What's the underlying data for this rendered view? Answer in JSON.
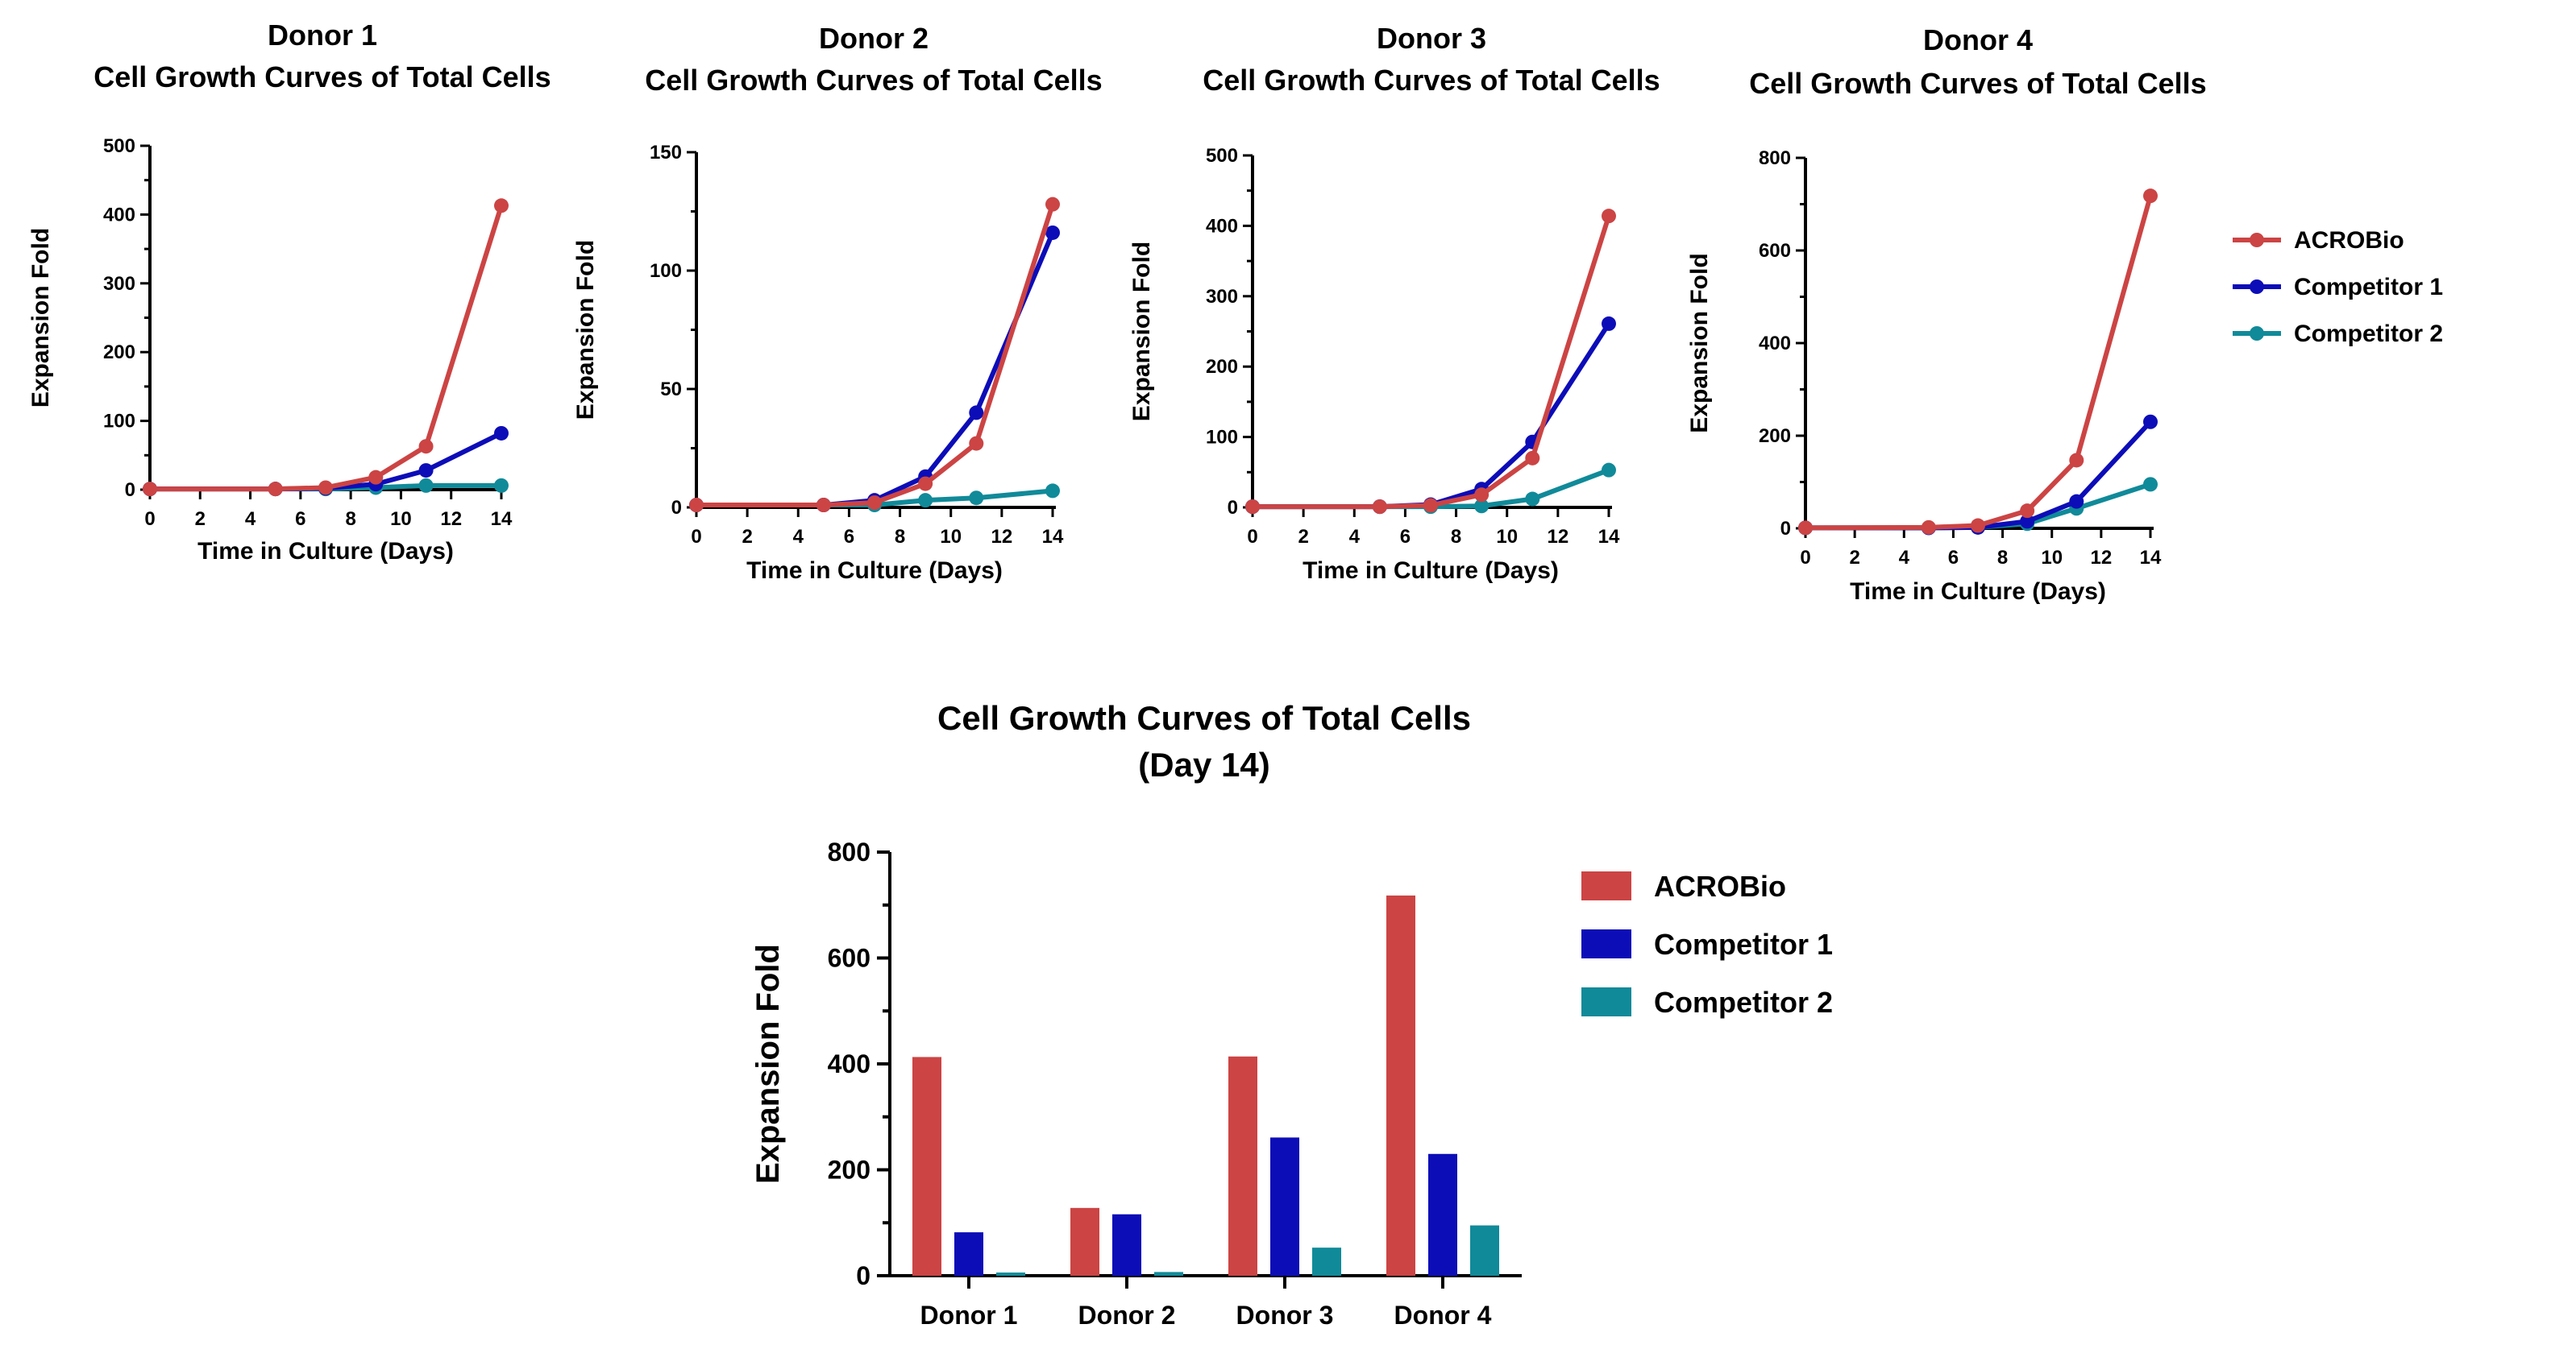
{
  "chart_data": [
    {
      "type": "line",
      "title": [
        "Donor 1",
        "Cell Growth Curves of Total Cells"
      ],
      "xlabel": "Time in Culture (Days)",
      "ylabel": "Expansion Fold",
      "xlim": [
        0,
        14
      ],
      "ylim": [
        0,
        500
      ],
      "xticks": [
        0,
        2,
        4,
        6,
        8,
        10,
        12,
        14
      ],
      "yticks": [
        0,
        100,
        200,
        300,
        400,
        500
      ],
      "grid": false,
      "x": [
        0,
        5,
        7,
        9,
        11,
        14
      ],
      "series": [
        {
          "name": "ACROBio",
          "color": "#CC4444",
          "values": [
            1,
            1,
            3,
            18,
            63,
            413
          ]
        },
        {
          "name": "Competitor 1",
          "color": "#0D0DB8",
          "values": [
            1,
            1,
            2,
            8,
            28,
            82
          ]
        },
        {
          "name": "Competitor 2",
          "color": "#108A99",
          "values": [
            1,
            1,
            1,
            3,
            6,
            6
          ]
        }
      ]
    },
    {
      "type": "line",
      "title": [
        "Donor 2",
        "Cell Growth Curves of Total Cells"
      ],
      "xlabel": "Time in Culture (Days)",
      "ylabel": "Expansion Fold",
      "xlim": [
        0,
        14
      ],
      "ylim": [
        0,
        150
      ],
      "xticks": [
        0,
        2,
        4,
        6,
        8,
        10,
        12,
        14
      ],
      "yticks": [
        0,
        50,
        100,
        150
      ],
      "grid": false,
      "x": [
        0,
        5,
        7,
        9,
        11,
        14
      ],
      "series": [
        {
          "name": "ACROBio",
          "color": "#CC4444",
          "values": [
            1,
            1,
            2,
            10,
            27,
            128
          ]
        },
        {
          "name": "Competitor 1",
          "color": "#0D0DB8",
          "values": [
            1,
            1,
            3,
            13,
            40,
            116
          ]
        },
        {
          "name": "Competitor 2",
          "color": "#108A99",
          "values": [
            1,
            1,
            1,
            3,
            4,
            7
          ]
        }
      ]
    },
    {
      "type": "line",
      "title": [
        "Donor 3",
        "Cell Growth Curves of Total Cells"
      ],
      "xlabel": "Time in Culture (Days)",
      "ylabel": "Expansion Fold",
      "xlim": [
        0,
        14
      ],
      "ylim": [
        0,
        500
      ],
      "xticks": [
        0,
        2,
        4,
        6,
        8,
        10,
        12,
        14
      ],
      "yticks": [
        0,
        100,
        200,
        300,
        400,
        500
      ],
      "grid": false,
      "x": [
        0,
        5,
        7,
        9,
        11,
        14
      ],
      "series": [
        {
          "name": "ACROBio",
          "color": "#CC4444",
          "values": [
            1,
            1,
            3,
            18,
            70,
            414
          ]
        },
        {
          "name": "Competitor 1",
          "color": "#0D0DB8",
          "values": [
            1,
            1,
            4,
            26,
            93,
            261
          ]
        },
        {
          "name": "Competitor 2",
          "color": "#108A99",
          "values": [
            1,
            1,
            1,
            2,
            12,
            53
          ]
        }
      ]
    },
    {
      "type": "line",
      "title": [
        "Donor 4",
        "Cell Growth Curves of Total Cells"
      ],
      "xlabel": "Time in Culture (Days)",
      "ylabel": "Expansion Fold",
      "xlim": [
        0,
        14
      ],
      "ylim": [
        0,
        800
      ],
      "xticks": [
        0,
        2,
        4,
        6,
        8,
        10,
        12,
        14
      ],
      "yticks": [
        0,
        200,
        400,
        600,
        800
      ],
      "grid": false,
      "x": [
        0,
        5,
        7,
        9,
        11,
        14
      ],
      "series": [
        {
          "name": "ACROBio",
          "color": "#CC4444",
          "values": [
            1,
            2,
            6,
            38,
            147,
            718
          ]
        },
        {
          "name": "Competitor 1",
          "color": "#0D0DB8",
          "values": [
            1,
            1,
            2,
            15,
            58,
            230
          ]
        },
        {
          "name": "Competitor 2",
          "color": "#108A99",
          "values": [
            1,
            1,
            2,
            10,
            43,
            95
          ]
        }
      ],
      "legend": "right"
    },
    {
      "type": "bar",
      "title": [
        "Cell Growth Curves of Total Cells",
        "(Day 14)"
      ],
      "xlabel": "",
      "ylabel": "Expansion Fold",
      "ylim": [
        0,
        800
      ],
      "yticks": [
        0,
        200,
        400,
        600,
        800
      ],
      "grid": false,
      "categories": [
        "Donor 1",
        "Donor 2",
        "Donor 3",
        "Donor 4"
      ],
      "series": [
        {
          "name": "ACROBio",
          "color": "#CC4444",
          "values": [
            413,
            128,
            414,
            718
          ]
        },
        {
          "name": "Competitor 1",
          "color": "#0D0DB8",
          "values": [
            82,
            116,
            261,
            230
          ]
        },
        {
          "name": "Competitor 2",
          "color": "#108A99",
          "values": [
            6,
            7,
            53,
            95
          ]
        }
      ],
      "legend": "right"
    }
  ]
}
